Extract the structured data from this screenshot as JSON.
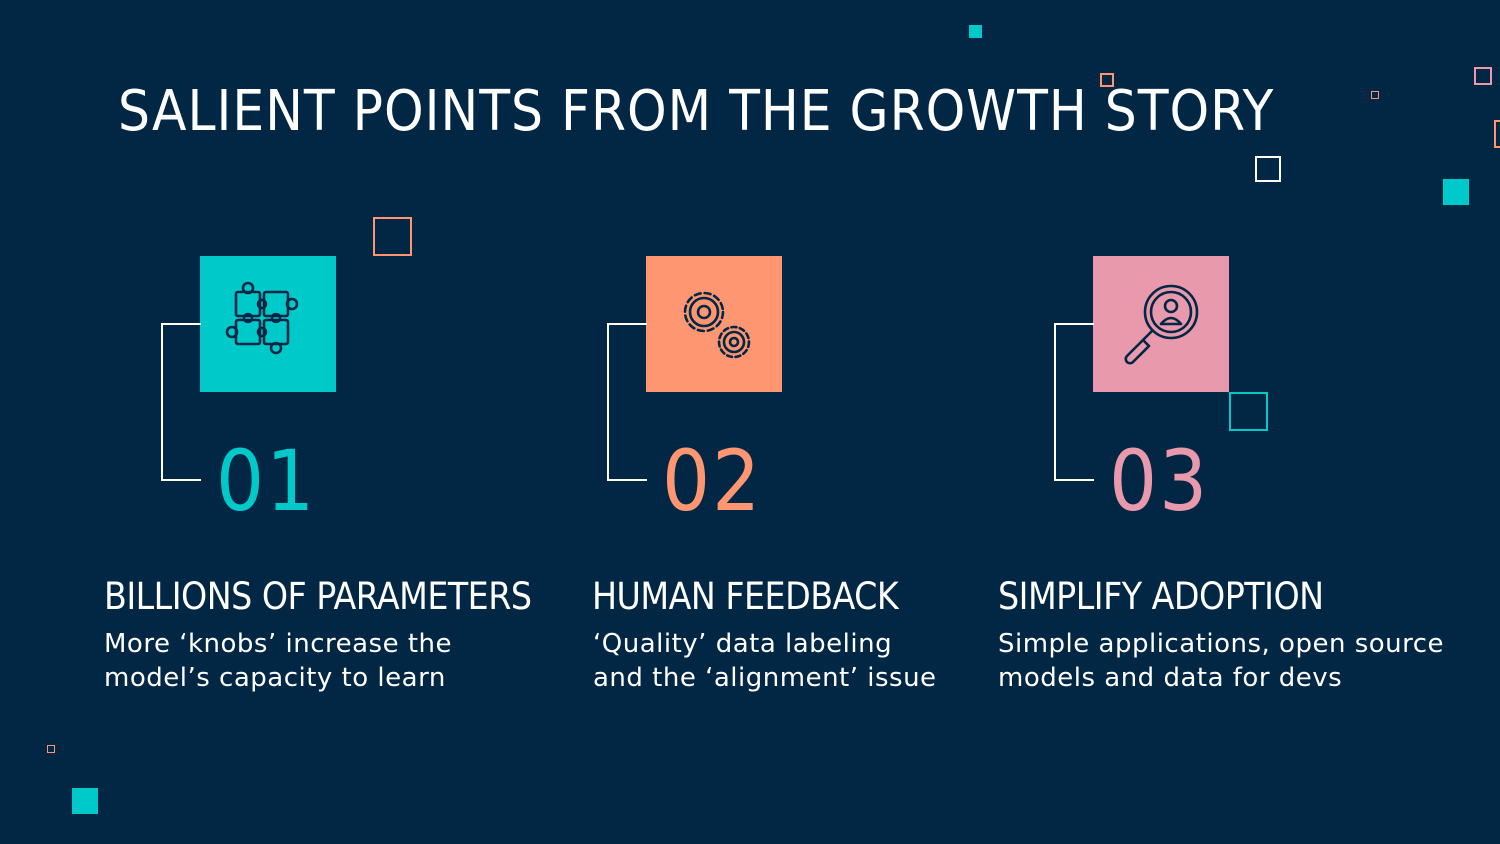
{
  "slide": {
    "title": "SALIENT POINTS FROM THE GROWTH STORY",
    "colors": {
      "background": "#012745",
      "teal": "#00c9c9",
      "salmon": "#ff9672",
      "pink": "#e899ab",
      "text": "#ffffff"
    },
    "items": [
      {
        "number": "01",
        "heading": "BILLIONS OF PARAMETERS",
        "line1": "More ‘knobs’ increase the",
        "line2": "model’s capacity to learn",
        "icon": "puzzle-icon",
        "color": "#00c9c9"
      },
      {
        "number": "02",
        "heading": "HUMAN FEEDBACK",
        "line1": "‘Quality’ data labeling",
        "line2": "and the ‘alignment’ issue",
        "icon": "gears-icon",
        "color": "#ff9672"
      },
      {
        "number": "03",
        "heading": "SIMPLIFY ADOPTION",
        "line1": "Simple applications, open source",
        "line2": "models and data for devs",
        "icon": "magnifier-user-icon",
        "color": "#e899ab"
      }
    ]
  }
}
